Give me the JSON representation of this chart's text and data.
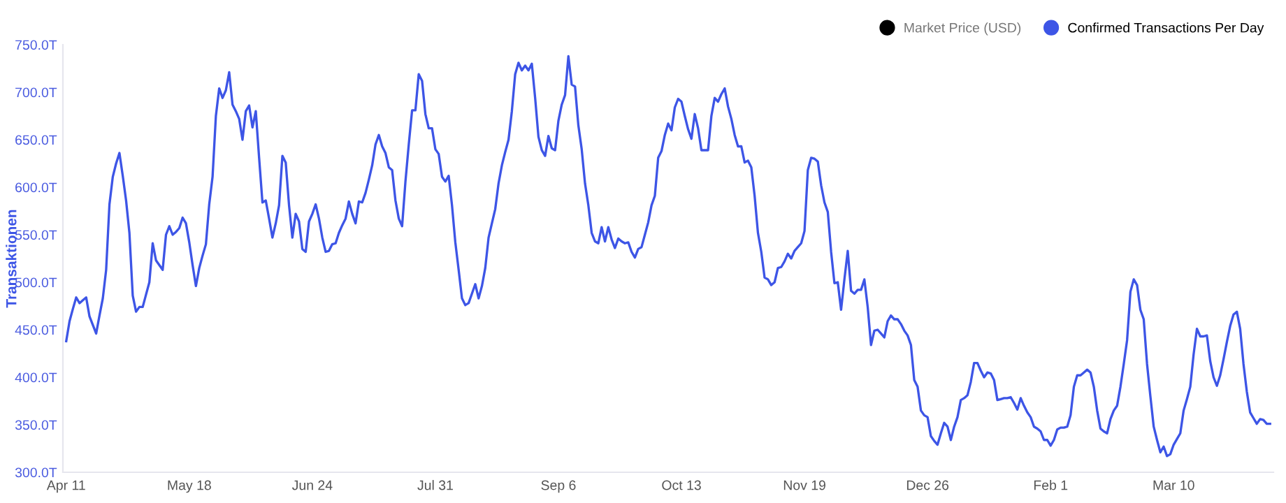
{
  "chart_data": {
    "type": "line",
    "ylabel": "Transaktionen",
    "ylim": [
      300,
      750
    ],
    "yticks": [
      {
        "value": 300,
        "label": "300.0T"
      },
      {
        "value": 350,
        "label": "350.0T"
      },
      {
        "value": 400,
        "label": "400.0T"
      },
      {
        "value": 450,
        "label": "450.0T"
      },
      {
        "value": 500,
        "label": "500.0T"
      },
      {
        "value": 550,
        "label": "550.0T"
      },
      {
        "value": 600,
        "label": "600.0T"
      },
      {
        "value": 650,
        "label": "650.0T"
      },
      {
        "value": 700,
        "label": "700.0T"
      },
      {
        "value": 750,
        "label": "750.0T"
      }
    ],
    "grid": false,
    "legend": "top right",
    "marker": "none",
    "line_style": "solid",
    "categories": [
      "Apr 11",
      null,
      null,
      null,
      null,
      null,
      null,
      null,
      null,
      null,
      null,
      null,
      null,
      null,
      null,
      null,
      null,
      null,
      null,
      null,
      null,
      null,
      null,
      null,
      null,
      null,
      null,
      null,
      null,
      null,
      null,
      null,
      null,
      null,
      null,
      null,
      null,
      "May 18",
      null,
      null,
      null,
      null,
      null,
      null,
      null,
      null,
      null,
      null,
      null,
      null,
      null,
      null,
      null,
      null,
      null,
      null,
      null,
      null,
      null,
      null,
      null,
      null,
      null,
      null,
      null,
      null,
      null,
      null,
      null,
      null,
      null,
      null,
      null,
      null,
      "Jun 24",
      null,
      null,
      null,
      null,
      null,
      null,
      null,
      null,
      null,
      null,
      null,
      null,
      null,
      null,
      null,
      null,
      null,
      null,
      null,
      null,
      null,
      null,
      null,
      null,
      null,
      null,
      null,
      null,
      null,
      null,
      null,
      null,
      null,
      null,
      null,
      null,
      "Jul 31",
      null,
      null,
      null,
      null,
      null,
      null,
      null,
      null,
      null,
      null,
      null,
      null,
      null,
      null,
      null,
      null,
      null,
      null,
      null,
      null,
      null,
      null,
      null,
      null,
      null,
      null,
      null,
      null,
      null,
      null,
      null,
      null,
      null,
      null,
      null,
      null,
      "Sep 6",
      null,
      null,
      null,
      null,
      null,
      null,
      null,
      null,
      null,
      null,
      null,
      null,
      null,
      null,
      null,
      null,
      null,
      null,
      null,
      null,
      null,
      null,
      null,
      null,
      null,
      null,
      null,
      null,
      null,
      null,
      null,
      null,
      null,
      null,
      null,
      null,
      "Oct 13",
      null,
      null,
      null,
      null,
      null,
      null,
      null,
      null,
      null,
      null,
      null,
      null,
      null,
      null,
      null,
      null,
      null,
      null,
      null,
      null,
      null,
      null,
      null,
      null,
      null,
      null,
      null,
      null,
      null,
      null,
      null,
      null,
      null,
      null,
      null,
      null,
      "Nov 19",
      null,
      null,
      null,
      null,
      null,
      null,
      null,
      null,
      null,
      null,
      null,
      null,
      null,
      null,
      null,
      null,
      null,
      null,
      null,
      null,
      null,
      null,
      null,
      null,
      null,
      null,
      null,
      null,
      null,
      null,
      null,
      null,
      null,
      null,
      null,
      null,
      "Dec 26",
      null,
      null,
      null,
      null,
      null,
      null,
      null,
      null,
      null,
      null,
      null,
      null,
      null,
      null,
      null,
      null,
      null,
      null,
      null,
      null,
      null,
      null,
      null,
      null,
      null,
      null,
      null,
      null,
      null,
      null,
      null,
      null,
      null,
      null,
      null,
      null,
      "Feb 1",
      null,
      null,
      null,
      null,
      null,
      null,
      null,
      null,
      null,
      null,
      null,
      null,
      null,
      null,
      null,
      null,
      null,
      null,
      null,
      null,
      null,
      null,
      null,
      null,
      null,
      null,
      null,
      null,
      null,
      null,
      null,
      null,
      null,
      null,
      null,
      null,
      "Mar 10",
      null,
      null,
      null,
      null,
      null,
      null,
      null,
      null,
      null,
      null,
      null,
      null,
      null,
      null,
      null,
      null,
      null,
      null,
      null,
      null,
      null,
      null,
      null,
      null,
      null,
      null,
      null,
      null,
      null
    ],
    "series": [
      {
        "name": "Market Price (USD)",
        "color": "#000000",
        "values": [
          null,
          null,
          null,
          null,
          null,
          null,
          null,
          null,
          null,
          null,
          null,
          null,
          null,
          null,
          null,
          null,
          null,
          null,
          null,
          null,
          null,
          null,
          null,
          null,
          null,
          null,
          null,
          null,
          null,
          null,
          null,
          null,
          null,
          null,
          null,
          null,
          null,
          null,
          null,
          null,
          null,
          null,
          null,
          null,
          null,
          null,
          null,
          null,
          null,
          null,
          null,
          null,
          null,
          null,
          null,
          null,
          null,
          null,
          null,
          null,
          null,
          null,
          null,
          null,
          null,
          null,
          null,
          null,
          null,
          null,
          null,
          null,
          null,
          null,
          null,
          null,
          null,
          null,
          null,
          null,
          null,
          null,
          null,
          null,
          null,
          null,
          null,
          null,
          null,
          null,
          null,
          null,
          null,
          null,
          null,
          null,
          null,
          null,
          null,
          null,
          null,
          null,
          null,
          null,
          null,
          null,
          null,
          null,
          null,
          null,
          null,
          null,
          null,
          null,
          null,
          null,
          null,
          null,
          null,
          null,
          null,
          null,
          null,
          null,
          null,
          null,
          null,
          null,
          null,
          null,
          null,
          null,
          null,
          null,
          null,
          null,
          null,
          null,
          null,
          null,
          null,
          null,
          null,
          null,
          null,
          null,
          null,
          null,
          null,
          null,
          null,
          null,
          null,
          null,
          null,
          null,
          null,
          null,
          null,
          null,
          null,
          null,
          null,
          null,
          null,
          null,
          null,
          null,
          null,
          null,
          null,
          null,
          null,
          null,
          null,
          null,
          null,
          null,
          null,
          null,
          null,
          null,
          null,
          null,
          null,
          null,
          null,
          null,
          null,
          null,
          null,
          null,
          null,
          null,
          null,
          null,
          null,
          null,
          null,
          null,
          null,
          null,
          null,
          null,
          null,
          null,
          null,
          null,
          null,
          null,
          null,
          null,
          null,
          null,
          null,
          null,
          null,
          null,
          null,
          null,
          null,
          null,
          null,
          null,
          null,
          null,
          null,
          null,
          null,
          null,
          null,
          null,
          null,
          null,
          null,
          null,
          null,
          null,
          null,
          null,
          null,
          null,
          null,
          null,
          null,
          null,
          null,
          null,
          null,
          null,
          null,
          null,
          null,
          null,
          null,
          null,
          null,
          null,
          null,
          null,
          null,
          null,
          null,
          null,
          null,
          null,
          null,
          null,
          null,
          null,
          null,
          null,
          null,
          null,
          null,
          null,
          null,
          null,
          null,
          null,
          null,
          null,
          null,
          null,
          null,
          null,
          null,
          null,
          null,
          null,
          null,
          null,
          null,
          null,
          null,
          null,
          null,
          null,
          null,
          null,
          null,
          null,
          null,
          null,
          null,
          null,
          null,
          null,
          null,
          null,
          null,
          null,
          null,
          null,
          null,
          null,
          null,
          null,
          null,
          null,
          null,
          null,
          null,
          null,
          null,
          null,
          null,
          null,
          null,
          null,
          null,
          null,
          null,
          null,
          null,
          null,
          null,
          null,
          null,
          null,
          null,
          null,
          null,
          null,
          null,
          null,
          null,
          null,
          null,
          null,
          null,
          null,
          null,
          null,
          null,
          null,
          null,
          null,
          null,
          null,
          null,
          null,
          null
        ]
      },
      {
        "name": "Confirmed Transactions Per Day",
        "color": "#3d55e6",
        "values": [
          438,
          459,
          472,
          484,
          478,
          481,
          484,
          464,
          455,
          446,
          465,
          483,
          513,
          582,
          611,
          625,
          636,
          612,
          586,
          552,
          486,
          469,
          474,
          474,
          487,
          500,
          541,
          523,
          518,
          513,
          550,
          559,
          550,
          553,
          557,
          568,
          562,
          542,
          518,
          496,
          515,
          528,
          540,
          582,
          611,
          675,
          704,
          694,
          702,
          721,
          687,
          680,
          672,
          650,
          680,
          686,
          663,
          680,
          631,
          584,
          586,
          567,
          547,
          562,
          581,
          633,
          626,
          581,
          547,
          572,
          564,
          535,
          532,
          564,
          572,
          582,
          567,
          547,
          532,
          533,
          540,
          541,
          552,
          560,
          567,
          585,
          572,
          562,
          585,
          584,
          594,
          608,
          623,
          645,
          655,
          643,
          636,
          621,
          618,
          586,
          567,
          559,
          606,
          645,
          681,
          681,
          719,
          712,
          677,
          662,
          662,
          640,
          635,
          611,
          606,
          612,
          581,
          542,
          513,
          483,
          476,
          478,
          488,
          498,
          483,
          496,
          515,
          547,
          562,
          577,
          604,
          623,
          637,
          650,
          680,
          719,
          731,
          723,
          728,
          723,
          730,
          694,
          653,
          639,
          633,
          654,
          641,
          639,
          670,
          687,
          697,
          738,
          708,
          706,
          665,
          640,
          604,
          581,
          552,
          543,
          541,
          558,
          543,
          558,
          545,
          536,
          546,
          543,
          541,
          542,
          532,
          526,
          535,
          537,
          550,
          563,
          581,
          591,
          631,
          638,
          655,
          667,
          660,
          684,
          693,
          690,
          675,
          661,
          651,
          677,
          662,
          639,
          639,
          639,
          675,
          694,
          690,
          698,
          704,
          685,
          672,
          655,
          643,
          643,
          626,
          628,
          621,
          591,
          552,
          532,
          505,
          503,
          497,
          500,
          515,
          516,
          522,
          530,
          525,
          533,
          537,
          541,
          554,
          618,
          631,
          630,
          627,
          602,
          584,
          574,
          532,
          499,
          500,
          471,
          503,
          533,
          491,
          488,
          492,
          492,
          503,
          474,
          434,
          449,
          450,
          446,
          442,
          459,
          465,
          461,
          461,
          456,
          449,
          444,
          434,
          397,
          390,
          365,
          360,
          358,
          338,
          333,
          329,
          341,
          352,
          348,
          334,
          348,
          358,
          376,
          378,
          381,
          395,
          415,
          415,
          407,
          400,
          405,
          404,
          397,
          376,
          377,
          378,
          378,
          379,
          373,
          366,
          378,
          370,
          363,
          358,
          348,
          346,
          343,
          334,
          334,
          328,
          334,
          345,
          347,
          347,
          348,
          360,
          390,
          402,
          402,
          405,
          408,
          405,
          390,
          365,
          346,
          343,
          341,
          356,
          365,
          370,
          390,
          414,
          439,
          490,
          503,
          497,
          471,
          461,
          414,
          380,
          348,
          334,
          321,
          327,
          317,
          319,
          329,
          335,
          341,
          365,
          377,
          390,
          424,
          451,
          443,
          443,
          444,
          417,
          400,
          391,
          402,
          419,
          437,
          454,
          466,
          469,
          451,
          414,
          385,
          363,
          357,
          351,
          356,
          355,
          351,
          351
        ]
      }
    ]
  }
}
